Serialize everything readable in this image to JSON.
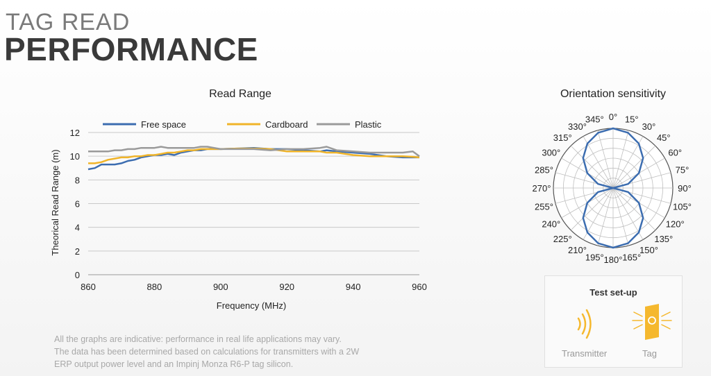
{
  "header": {
    "line1": "TAG READ",
    "line2": "PERFORMANCE"
  },
  "chart_data": [
    {
      "type": "line",
      "title": "Read Range",
      "xlabel": "Frequency (MHz)",
      "ylabel": "Theorical Read Range (m)",
      "xlim": [
        860,
        960
      ],
      "ylim": [
        0,
        12
      ],
      "xticks": [
        860,
        880,
        900,
        920,
        940,
        960
      ],
      "yticks": [
        0,
        2,
        4,
        6,
        8,
        10,
        12
      ],
      "grid": "horizontal",
      "legend": "top",
      "x": [
        860,
        862,
        864,
        866,
        868,
        870,
        872,
        874,
        876,
        878,
        880,
        882,
        884,
        886,
        888,
        890,
        892,
        894,
        896,
        898,
        900,
        905,
        910,
        915,
        920,
        925,
        930,
        932,
        935,
        940,
        945,
        950,
        955,
        958,
        960
      ],
      "series": [
        {
          "name": "Free space",
          "color": "#3c6db0",
          "values": [
            8.9,
            9.0,
            9.3,
            9.3,
            9.3,
            9.4,
            9.6,
            9.7,
            9.9,
            10.0,
            10.1,
            10.1,
            10.2,
            10.1,
            10.3,
            10.4,
            10.5,
            10.5,
            10.6,
            10.6,
            10.6,
            10.65,
            10.7,
            10.6,
            10.6,
            10.5,
            10.4,
            10.5,
            10.4,
            10.3,
            10.2,
            10.0,
            9.9,
            9.9,
            9.9
          ]
        },
        {
          "name": "Cardboard",
          "color": "#f0b429",
          "values": [
            9.4,
            9.4,
            9.5,
            9.7,
            9.8,
            9.9,
            9.9,
            10.0,
            10.0,
            10.1,
            10.1,
            10.2,
            10.3,
            10.3,
            10.4,
            10.5,
            10.5,
            10.6,
            10.6,
            10.6,
            10.6,
            10.65,
            10.65,
            10.6,
            10.4,
            10.4,
            10.4,
            10.3,
            10.3,
            10.1,
            10.0,
            10.0,
            10.0,
            9.95,
            9.9
          ]
        },
        {
          "name": "Plastic",
          "color": "#9a9a9a",
          "values": [
            10.4,
            10.4,
            10.4,
            10.4,
            10.5,
            10.5,
            10.6,
            10.6,
            10.7,
            10.7,
            10.7,
            10.8,
            10.7,
            10.7,
            10.7,
            10.7,
            10.7,
            10.8,
            10.8,
            10.7,
            10.6,
            10.6,
            10.6,
            10.5,
            10.6,
            10.6,
            10.7,
            10.8,
            10.5,
            10.4,
            10.3,
            10.3,
            10.3,
            10.4,
            10.0
          ]
        }
      ]
    },
    {
      "type": "polar",
      "title": "Orientation sensitivity",
      "angle_labels": [
        "0°",
        "15°",
        "30°",
        "45°",
        "60°",
        "75°",
        "90°",
        "105°",
        "120°",
        "135°",
        "150°",
        "165°",
        "180°",
        "195°",
        "210°",
        "225°",
        "240°",
        "255°",
        "270°",
        "285°",
        "300°",
        "315°",
        "330°",
        "345°"
      ],
      "angles": [
        0,
        15,
        30,
        45,
        60,
        75,
        90,
        105,
        120,
        135,
        150,
        165,
        180,
        195,
        210,
        225,
        240,
        255,
        270,
        285,
        300,
        315,
        330,
        345
      ],
      "values": [
        1.0,
        0.96,
        0.86,
        0.71,
        0.5,
        0.26,
        0.0,
        0.26,
        0.5,
        0.71,
        0.86,
        0.96,
        1.0,
        0.96,
        0.86,
        0.71,
        0.5,
        0.26,
        0.0,
        0.26,
        0.5,
        0.71,
        0.86,
        0.96
      ],
      "rlim": [
        0,
        1
      ],
      "rings": 6,
      "color": "#3c6db0"
    }
  ],
  "notes": [
    "All the graphs are indicative: performance in real life applications may vary.",
    "The data has been determined based on calculations for transmitters with a 2W",
    "ERP output power level and an Impinj Monza R6-P tag silicon."
  ],
  "setup": {
    "title": "Test set-up",
    "transmitter_label": "Transmitter",
    "tag_label": "Tag",
    "transmitter_icon": "radio-waves-icon",
    "tag_icon": "rfid-tag-icon",
    "accent": "#f5b82e"
  }
}
